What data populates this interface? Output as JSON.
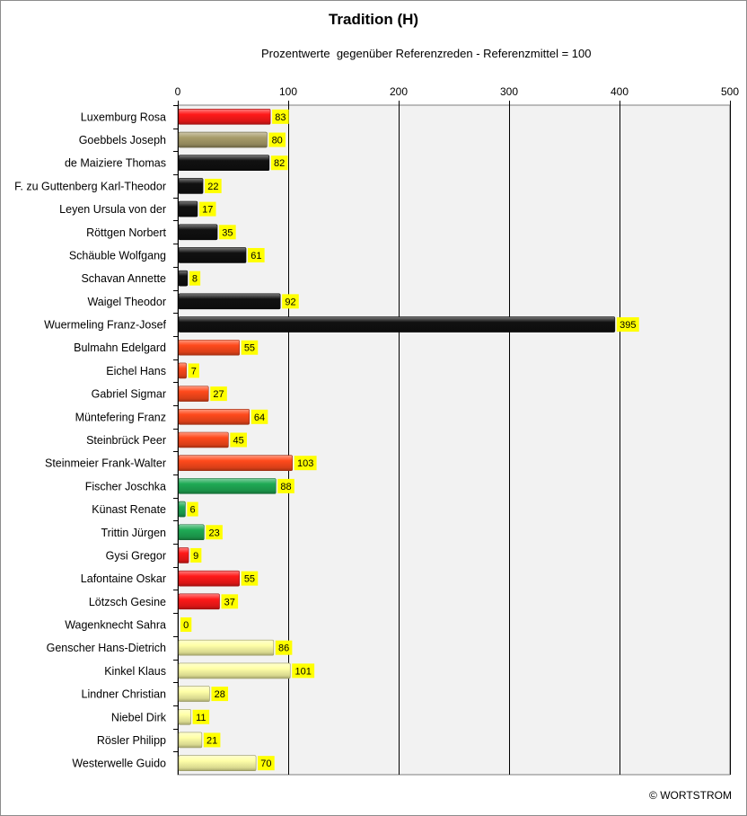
{
  "chart_data": {
    "type": "bar",
    "orientation": "horizontal",
    "title": "Tradition (H)",
    "subtitle": "Prozentwerte  gegenüber Referenzreden - Referenzmittel = 100",
    "xlim": [
      0,
      500
    ],
    "xticks": [
      0,
      100,
      200,
      300,
      400,
      500
    ],
    "grid": true,
    "categories": [
      "Luxemburg Rosa",
      "Goebbels Joseph",
      "de Maiziere Thomas",
      "F. zu Guttenberg Karl-Theodor",
      "Leyen Ursula von der",
      "Röttgen Norbert",
      "Schäuble Wolfgang",
      "Schavan Annette",
      "Waigel Theodor",
      "Wuermeling Franz-Josef",
      "Bulmahn Edelgard",
      "Eichel Hans",
      "Gabriel Sigmar",
      "Müntefering Franz",
      "Steinbrück Peer",
      "Steinmeier Frank-Walter",
      "Fischer Joschka",
      "Künast Renate",
      "Trittin Jürgen",
      "Gysi Gregor",
      "Lafontaine Oskar",
      "Lötzsch Gesine",
      "Wagenknecht Sahra",
      "Genscher Hans-Dietrich",
      "Kinkel Klaus",
      "Lindner Christian",
      "Niebel Dirk",
      "Rösler Philipp",
      "Westerwelle Guido"
    ],
    "values": [
      83,
      80,
      82,
      22,
      17,
      35,
      61,
      8,
      92,
      395,
      55,
      7,
      27,
      64,
      45,
      103,
      88,
      6,
      23,
      9,
      55,
      37,
      0,
      86,
      101,
      28,
      11,
      21,
      70
    ],
    "colors": [
      "#ff1a1a",
      "#a89c6a",
      "#111111",
      "#111111",
      "#111111",
      "#111111",
      "#111111",
      "#111111",
      "#111111",
      "#111111",
      "#ff4a1c",
      "#ff4a1c",
      "#ff4a1c",
      "#ff4a1c",
      "#ff4a1c",
      "#ff4a1c",
      "#1faa55",
      "#1faa55",
      "#1faa55",
      "#ff1a1a",
      "#ff1a1a",
      "#ff1a1a",
      "#ff1a1a",
      "#ffffa8",
      "#ffffa8",
      "#ffffa8",
      "#ffffa8",
      "#ffffa8",
      "#ffffa8"
    ],
    "data_label_background": "#ffff00",
    "plot_background": "#f2f2f2"
  },
  "footer": {
    "copyright": "© WORTSTROM"
  }
}
